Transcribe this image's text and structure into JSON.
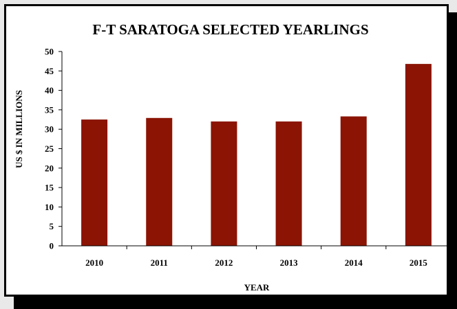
{
  "chart_data": {
    "type": "bar",
    "title": "F-T SARATOGA SELECTED YEARLINGS",
    "xlabel": "YEAR",
    "ylabel": "US $ IN MILLIONS",
    "categories": [
      "2010",
      "2011",
      "2012",
      "2013",
      "2014",
      "2015"
    ],
    "values": [
      32.5,
      32.9,
      32.0,
      32.0,
      33.3,
      46.8
    ],
    "ylim": [
      0,
      50
    ],
    "yticks": [
      0,
      5,
      10,
      15,
      20,
      25,
      30,
      35,
      40,
      45,
      50
    ],
    "grid": false,
    "legend": "none",
    "bar_color": "#8b1404"
  }
}
